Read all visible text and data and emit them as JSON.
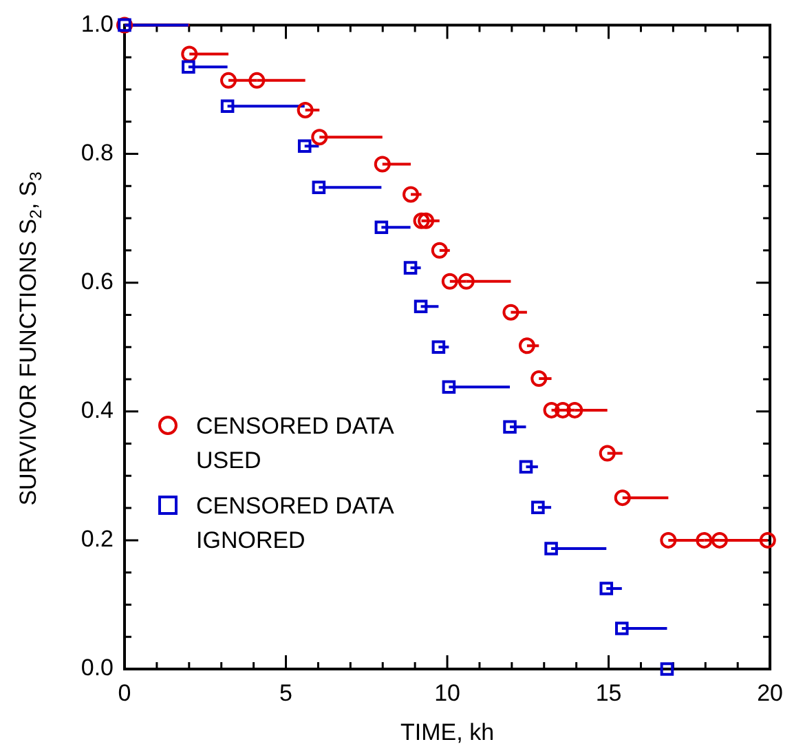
{
  "chart_data": {
    "type": "scatter",
    "xlabel": "TIME, kh",
    "ylabel": "SURVIVOR FUNCTIONS S$_{2}$, S$_{3}$",
    "xlim": [
      0,
      20
    ],
    "ylim": [
      0,
      1
    ],
    "xticks": [
      0,
      {
        "value": 1,
        "label": null
      },
      {
        "value": 2,
        "label": null
      },
      {
        "value": 3,
        "label": null
      },
      {
        "value": 4,
        "label": null
      },
      5,
      {
        "value": 6,
        "label": null
      },
      {
        "value": 7,
        "label": null
      },
      {
        "value": 8,
        "label": null
      },
      {
        "value": 9,
        "label": null
      },
      10,
      {
        "value": 11,
        "label": null
      },
      {
        "value": 12,
        "label": null
      },
      {
        "value": 13,
        "label": null
      },
      {
        "value": 14,
        "label": null
      },
      15,
      {
        "value": 16,
        "label": null
      },
      {
        "value": 17,
        "label": null
      },
      {
        "value": 18,
        "label": null
      },
      {
        "value": 19,
        "label": null
      },
      20
    ],
    "yticks": [
      {
        "value": 0,
        "label": "0.0"
      },
      {
        "value": 0.05,
        "label": null
      },
      {
        "value": 0.1,
        "label": null
      },
      {
        "value": 0.15,
        "label": null
      },
      {
        "value": 0.2,
        "label": "0.2"
      },
      {
        "value": 0.25,
        "label": null
      },
      {
        "value": 0.3,
        "label": null
      },
      {
        "value": 0.35,
        "label": null
      },
      {
        "value": 0.4,
        "label": "0.4"
      },
      {
        "value": 0.45,
        "label": null
      },
      {
        "value": 0.5,
        "label": null
      },
      {
        "value": 0.55,
        "label": null
      },
      {
        "value": 0.6,
        "label": "0.6"
      },
      {
        "value": 0.65,
        "label": null
      },
      {
        "value": 0.7,
        "label": null
      },
      {
        "value": 0.75,
        "label": null
      },
      {
        "value": 0.8,
        "label": "0.8"
      },
      {
        "value": 0.85,
        "label": null
      },
      {
        "value": 0.9,
        "label": null
      },
      {
        "value": 0.95,
        "label": null
      },
      {
        "value": 1,
        "label": "1.0"
      }
    ],
    "legend": "left",
    "series": [
      {
        "name": "CENSORED DATA USED",
        "color": "#e00000",
        "marker": "circle",
        "x": [
          0,
          2.01,
          3.22,
          4.1,
          5.6,
          6.04,
          7.99,
          8.87,
          9.2,
          9.34,
          9.76,
          10.08,
          10.59,
          11.97,
          12.47,
          12.84,
          13.23,
          13.58,
          13.95,
          14.96,
          15.43,
          16.85,
          17.96,
          18.44,
          19.93
        ],
        "values": [
          1.0,
          0.955,
          0.914,
          0.914,
          0.868,
          0.826,
          0.784,
          0.737,
          0.696,
          0.696,
          0.65,
          0.602,
          0.602,
          0.554,
          0.502,
          0.451,
          0.402,
          0.402,
          0.402,
          0.335,
          0.266,
          0.2,
          0.2,
          0.2,
          0.2
        ],
        "xerrors": [
          [
            0,
            2.01
          ],
          [
            2.01,
            3.22
          ],
          [
            3.22,
            4.1
          ],
          [
            4.1,
            5.6
          ],
          [
            5.6,
            6.04
          ],
          [
            6.04,
            7.99
          ],
          [
            7.99,
            8.87
          ],
          [
            8.87,
            9.2
          ],
          [
            9.2,
            9.34
          ],
          [
            9.34,
            9.76
          ],
          [
            9.76,
            10.08
          ],
          [
            10.08,
            10.59
          ],
          [
            10.59,
            11.97
          ],
          [
            11.97,
            12.47
          ],
          [
            12.47,
            12.84
          ],
          [
            12.84,
            13.23
          ],
          [
            13.23,
            13.58
          ],
          [
            13.58,
            13.95
          ],
          [
            13.95,
            14.96
          ],
          [
            14.96,
            15.43
          ],
          [
            15.43,
            16.85
          ],
          [
            16.85,
            17.96
          ],
          [
            17.96,
            18.44
          ],
          [
            18.44,
            19.93
          ],
          null
        ]
      },
      {
        "name": "CENSORED DATA IGNORED",
        "color": "#0000d0",
        "marker": "square",
        "x": [
          0,
          1.98,
          3.19,
          5.58,
          6.02,
          7.96,
          8.86,
          9.18,
          9.73,
          10.05,
          11.94,
          12.44,
          12.81,
          13.22,
          14.93,
          15.41,
          16.81
        ],
        "values": [
          1.0,
          0.935,
          0.874,
          0.812,
          0.748,
          0.686,
          0.623,
          0.563,
          0.5,
          0.438,
          0.376,
          0.314,
          0.251,
          0.187,
          0.125,
          0.063,
          0.0
        ],
        "xerrors": [
          [
            0,
            1.98
          ],
          [
            1.98,
            3.19
          ],
          [
            3.19,
            5.58
          ],
          [
            5.58,
            6.02
          ],
          [
            6.02,
            7.96
          ],
          [
            7.96,
            8.86
          ],
          [
            8.86,
            9.18
          ],
          [
            9.18,
            9.73
          ],
          [
            9.73,
            10.05
          ],
          [
            10.05,
            11.94
          ],
          [
            11.94,
            12.44
          ],
          [
            12.44,
            12.81
          ],
          [
            12.81,
            13.22
          ],
          [
            13.22,
            14.93
          ],
          [
            14.93,
            15.41
          ],
          [
            15.41,
            16.81
          ],
          null
        ]
      }
    ]
  }
}
